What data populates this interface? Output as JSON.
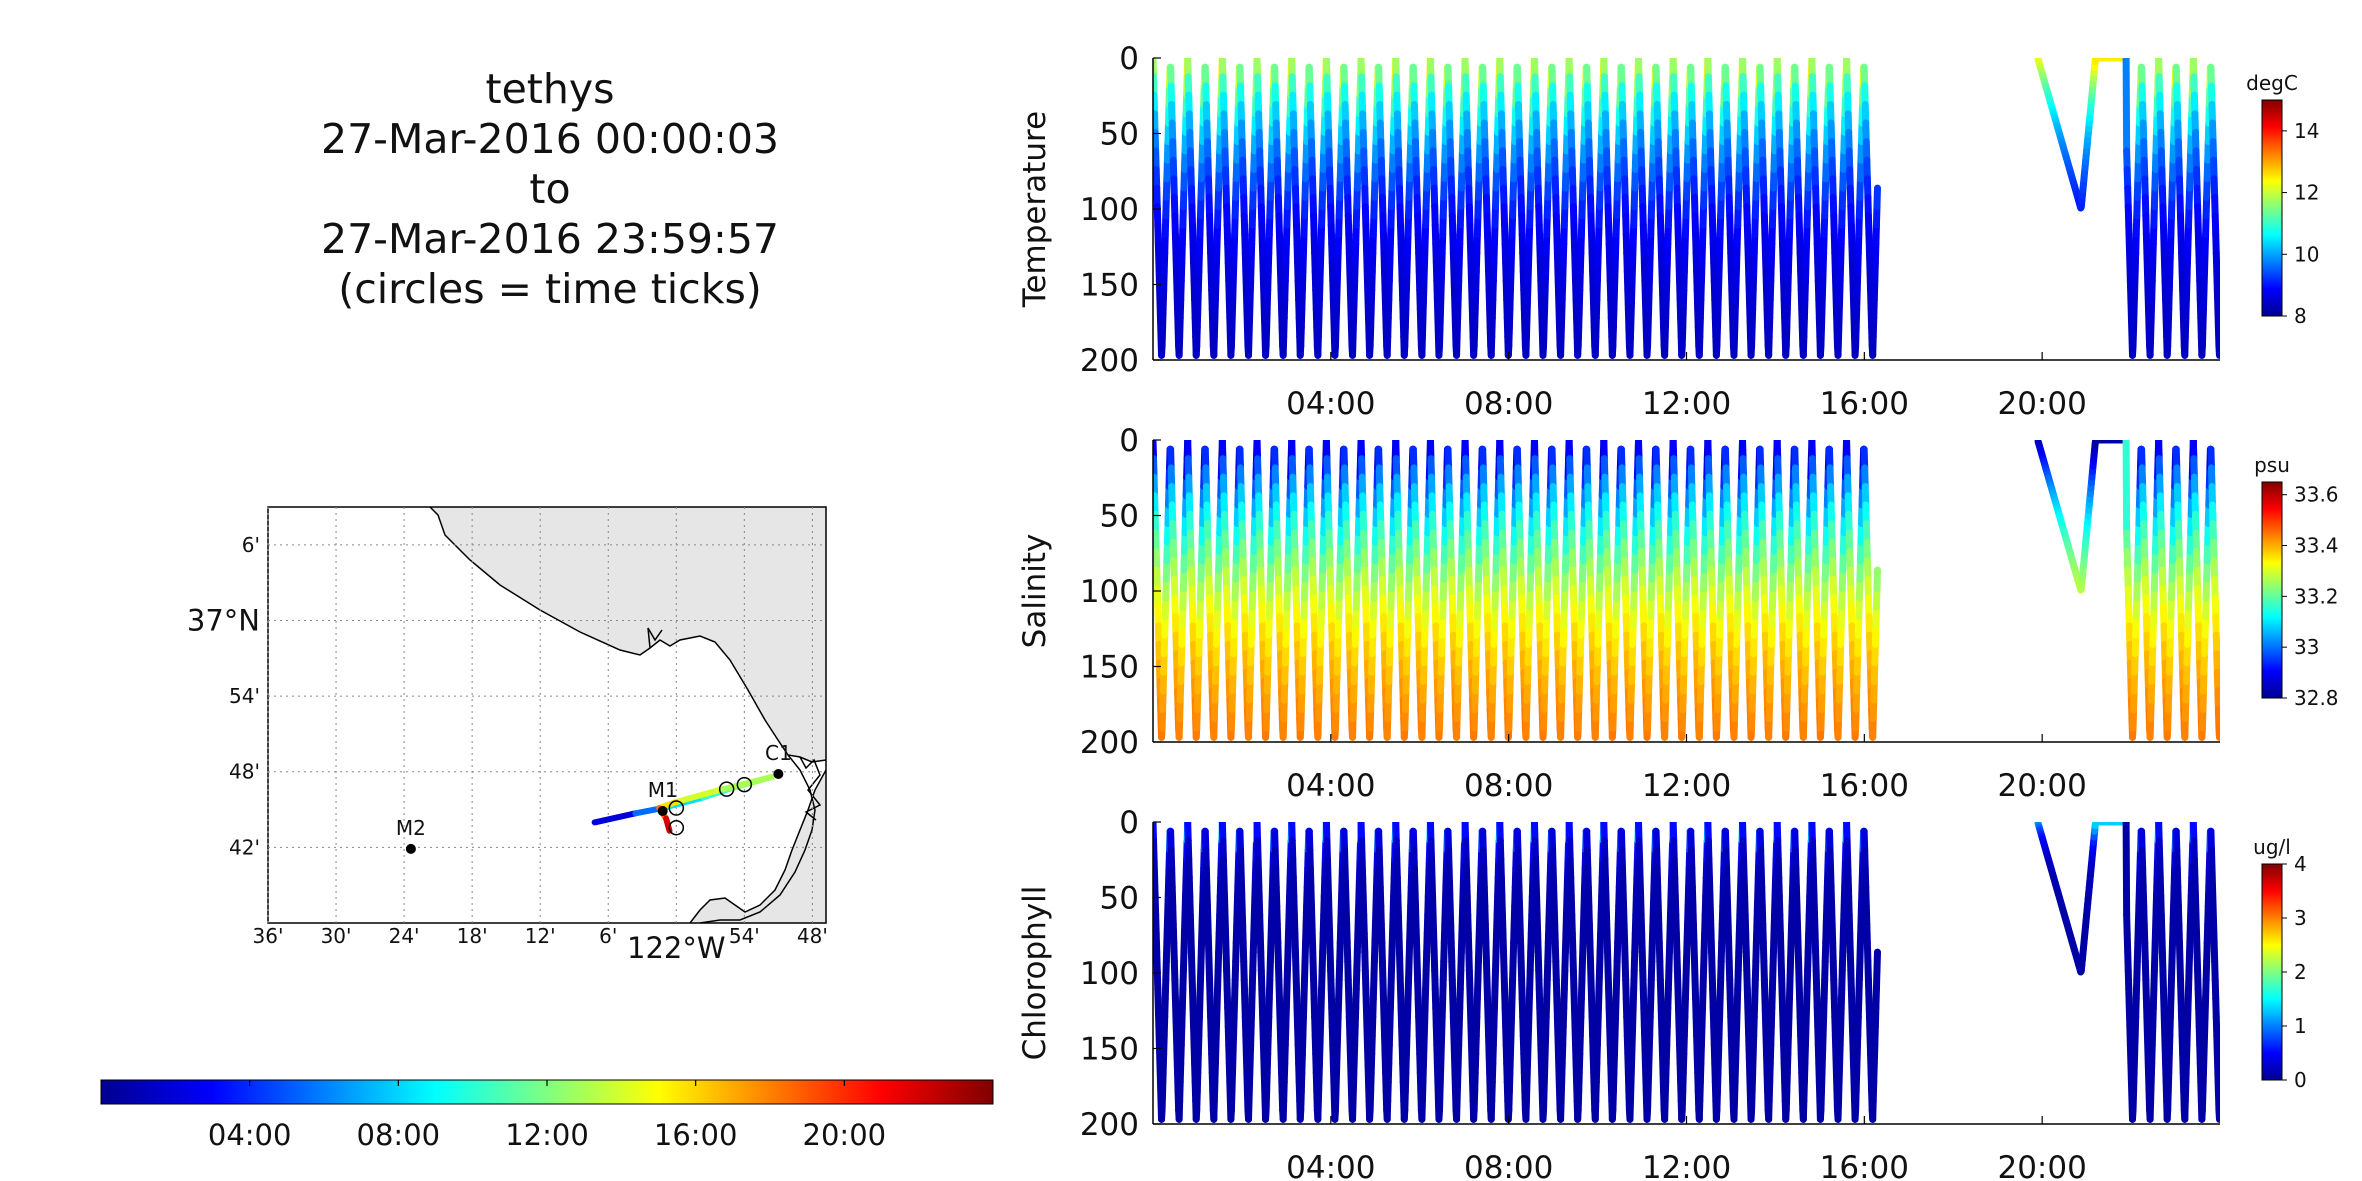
{
  "header": {
    "vehicle": "tethys",
    "start": "27-Mar-2016 00:00:03",
    "to": "to",
    "end": "27-Mar-2016 23:59:57",
    "note": "(circles = time ticks)"
  },
  "colors": {
    "jet": [
      "#00008f",
      "#0000ff",
      "#0080ff",
      "#00ffff",
      "#80ff80",
      "#ffff00",
      "#ff8000",
      "#ff0000",
      "#800000"
    ],
    "land": "#e6e6e6",
    "grid": "#888888"
  },
  "time_colorbar": {
    "tick_hours": [
      4,
      8,
      12,
      16,
      20
    ],
    "tick_labels": [
      "04:00",
      "08:00",
      "12:00",
      "16:00",
      "20:00"
    ],
    "range_hours": [
      0,
      24
    ]
  },
  "map": {
    "lat_ticks": [
      "6'",
      "37°N",
      "54'",
      "48'",
      "42'"
    ],
    "lat_values": [
      37.1,
      37.0,
      36.9,
      36.8,
      36.7
    ],
    "lon_ticks": [
      "36'",
      "30'",
      "24'",
      "18'",
      "12'",
      "6'",
      "122°W",
      "54'",
      "48'"
    ],
    "lon_values": [
      -122.6,
      -122.5,
      -122.4,
      -122.3,
      -122.2,
      -122.1,
      -122.0,
      -121.9,
      -121.8
    ],
    "lat_range": [
      36.6,
      37.15
    ],
    "lon_range": [
      -122.6,
      -121.78
    ],
    "moorings": [
      {
        "name": "M1",
        "lon": -122.02,
        "lat": 36.748
      },
      {
        "name": "M2",
        "lon": -122.39,
        "lat": 36.698
      },
      {
        "name": "C1",
        "lon": -121.85,
        "lat": 36.797
      }
    ],
    "track": [
      {
        "lon": -122.12,
        "lat": 36.733,
        "hour": 0.0
      },
      {
        "lon": -122.06,
        "lat": 36.745,
        "hour": 4.0
      },
      {
        "lon": -122.02,
        "lat": 36.752,
        "hour": 7.0
      },
      {
        "lon": -121.96,
        "lat": 36.766,
        "hour": 9.5
      },
      {
        "lon": -121.92,
        "lat": 36.778,
        "hour": 11.0
      },
      {
        "lon": -121.86,
        "lat": 36.793,
        "hour": 12.5
      },
      {
        "lon": -121.94,
        "lat": 36.775,
        "hour": 13.5
      },
      {
        "lon": -122.0,
        "lat": 36.76,
        "hour": 14.5
      },
      {
        "lon": -122.025,
        "lat": 36.752,
        "hour": 17.0
      },
      {
        "lon": -122.015,
        "lat": 36.738,
        "hour": 20.0
      },
      {
        "lon": -122.01,
        "lat": 36.722,
        "hour": 23.9
      }
    ],
    "time_circles": [
      {
        "lon": -122.0,
        "lat": 36.752
      },
      {
        "lon": -121.9,
        "lat": 36.783
      },
      {
        "lon": -121.926,
        "lat": 36.777
      },
      {
        "lon": -122.0,
        "lat": 36.726
      }
    ]
  },
  "chart_data": [
    {
      "type": "scatter",
      "ylabel": "Temperature",
      "unit": "degC",
      "clim": [
        8,
        15
      ],
      "cbar_ticks": [
        8,
        10,
        12,
        14
      ],
      "surface_value": 12.5,
      "deep_value": 8.2,
      "thermocline_depth": 60,
      "ylim": [
        200,
        0
      ],
      "yticks": [
        0,
        50,
        100,
        150,
        200
      ],
      "x_range_hours": [
        0,
        24
      ],
      "xticks": [
        "04:00",
        "08:00",
        "12:00",
        "16:00",
        "20:00"
      ]
    },
    {
      "type": "scatter",
      "ylabel": "Salinity",
      "unit": "psu",
      "clim": [
        32.8,
        33.65
      ],
      "cbar_ticks": [
        32.8,
        33,
        33.2,
        33.4,
        33.6
      ],
      "surface_value": 32.82,
      "deep_value": 33.55,
      "thermocline_depth": 100,
      "ylim": [
        200,
        0
      ],
      "yticks": [
        0,
        50,
        100,
        150,
        200
      ],
      "x_range_hours": [
        0,
        24
      ],
      "xticks": [
        "04:00",
        "08:00",
        "12:00",
        "16:00",
        "20:00"
      ]
    },
    {
      "type": "scatter",
      "ylabel": "Chlorophyll",
      "unit": "ug/l",
      "clim": [
        0,
        4
      ],
      "cbar_ticks": [
        0,
        1,
        2,
        3,
        4
      ],
      "surface_value": 1.3,
      "deep_value": 0.1,
      "thermocline_depth": 12,
      "ylim": [
        200,
        0
      ],
      "yticks": [
        0,
        50,
        100,
        150,
        200
      ],
      "x_range_hours": [
        0,
        24
      ],
      "xticks": [
        "04:00",
        "08:00",
        "12:00",
        "16:00",
        "20:00"
      ]
    }
  ],
  "profiles": {
    "yo_period_hours": 0.39,
    "max_depth": 200,
    "first_end_hours": 16.3,
    "surface_gap_hours": [
      16.3,
      19.9
    ],
    "shallow_dive": {
      "start": 19.9,
      "end": 21.2,
      "depth": 100
    },
    "resume_hours": 21.9,
    "end_hours": 24.0
  }
}
